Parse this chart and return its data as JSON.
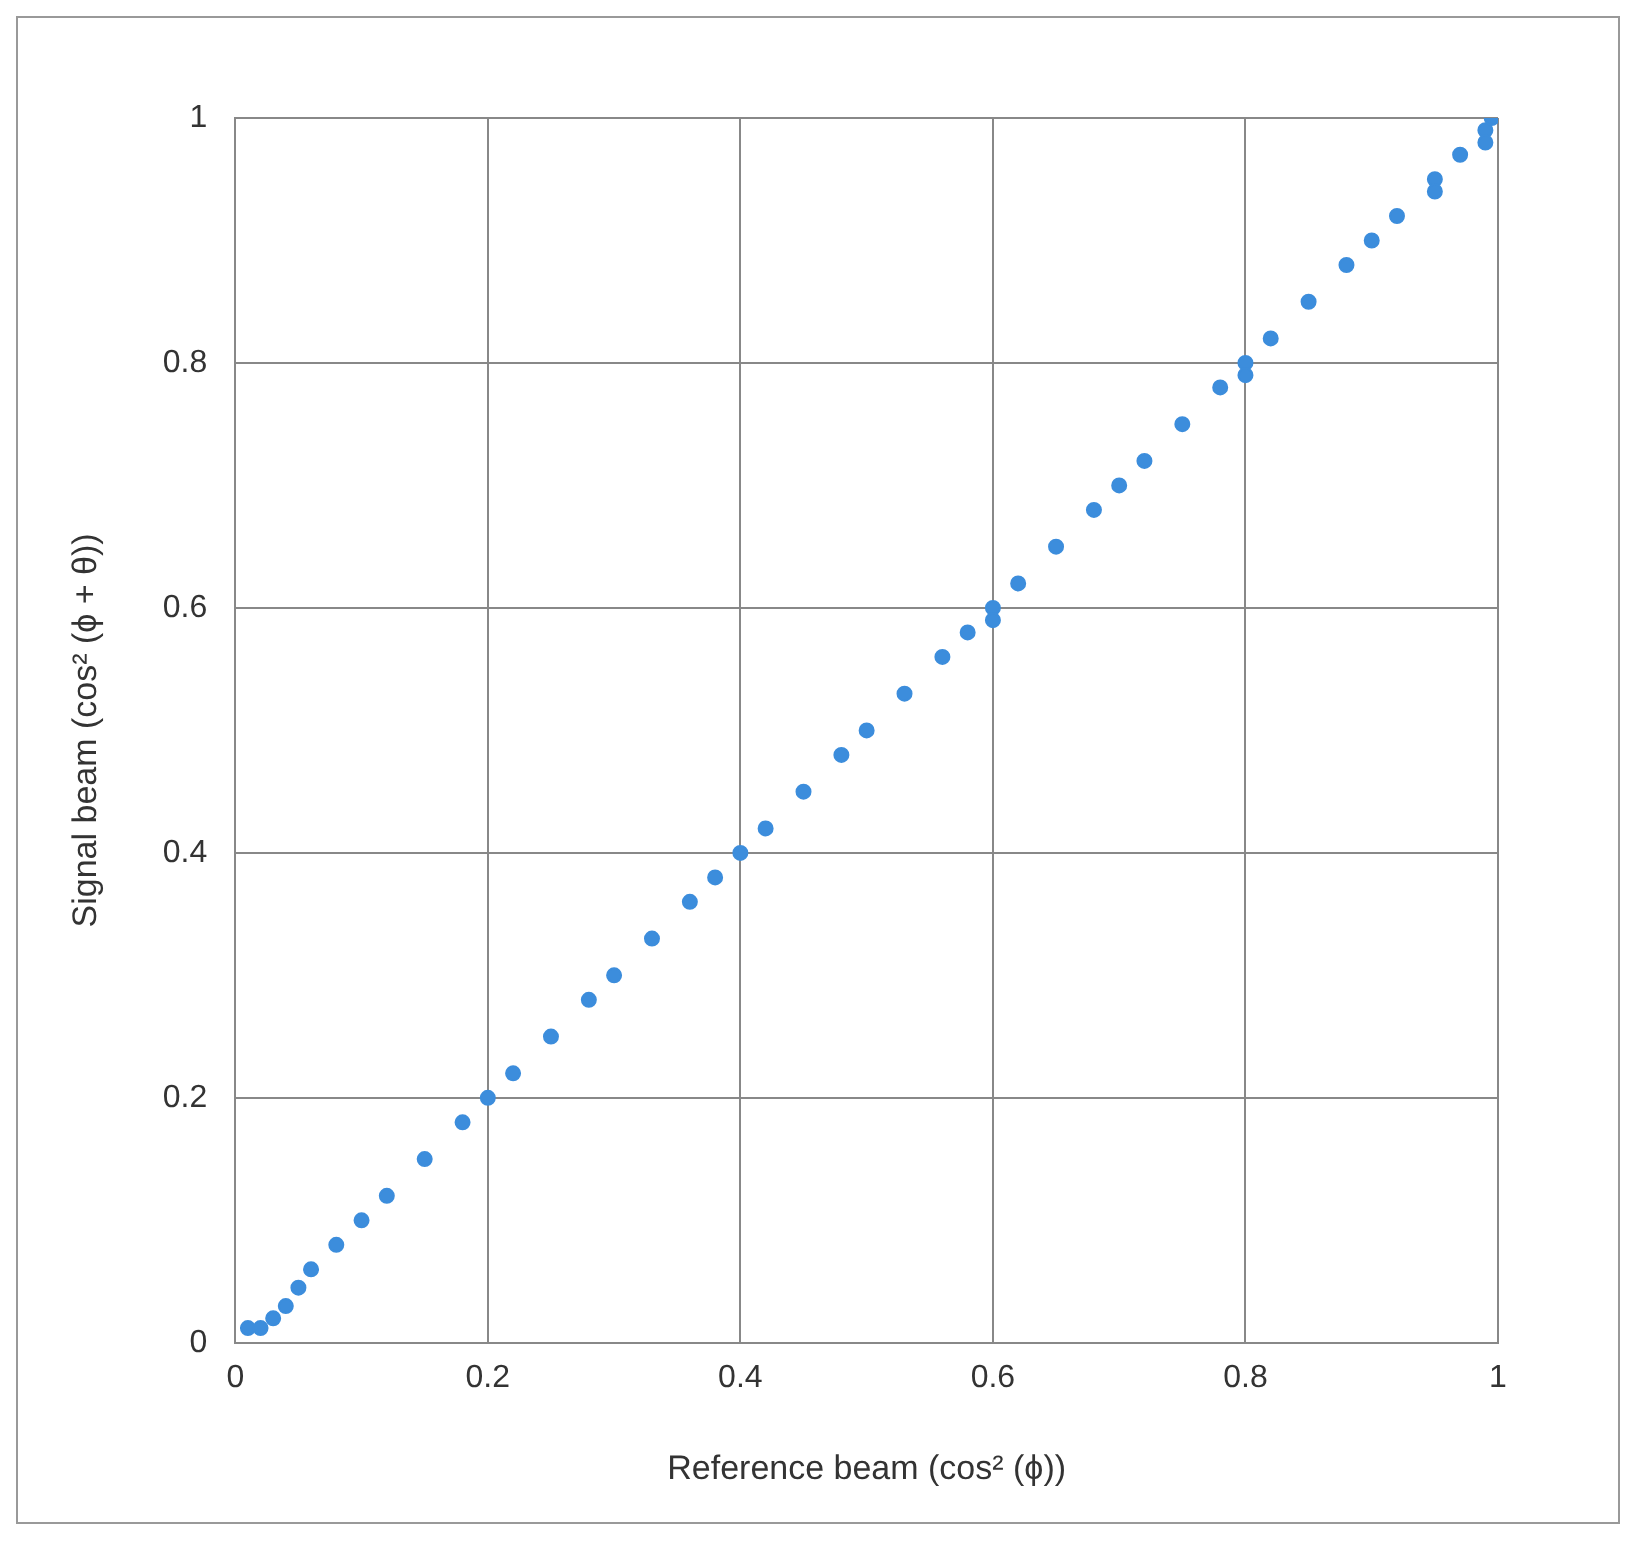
{
  "chart_data": {
    "type": "scatter",
    "xlabel": "Reference beam (cos² (ϕ))",
    "ylabel": "Signal beam (cos² (ϕ + θ))",
    "x": [
      0.01,
      0.02,
      0.03,
      0.04,
      0.05,
      0.06,
      0.08,
      0.1,
      0.12,
      0.15,
      0.18,
      0.2,
      0.22,
      0.25,
      0.28,
      0.3,
      0.33,
      0.36,
      0.38,
      0.4,
      0.42,
      0.45,
      0.48,
      0.5,
      0.53,
      0.56,
      0.58,
      0.6,
      0.6,
      0.62,
      0.65,
      0.68,
      0.7,
      0.72,
      0.75,
      0.78,
      0.8,
      0.8,
      0.82,
      0.85,
      0.88,
      0.9,
      0.92,
      0.95,
      0.95,
      0.97,
      0.99,
      0.99,
      0.995
    ],
    "series": [
      {
        "color": "#3c8ddc",
        "values": [
          0.012,
          0.012,
          0.02,
          0.03,
          0.045,
          0.06,
          0.08,
          0.1,
          0.12,
          0.15,
          0.18,
          0.2,
          0.22,
          0.25,
          0.28,
          0.3,
          0.33,
          0.36,
          0.38,
          0.4,
          0.42,
          0.45,
          0.48,
          0.5,
          0.53,
          0.56,
          0.58,
          0.6,
          0.59,
          0.62,
          0.65,
          0.68,
          0.7,
          0.72,
          0.75,
          0.78,
          0.8,
          0.79,
          0.82,
          0.85,
          0.88,
          0.9,
          0.92,
          0.95,
          0.94,
          0.97,
          0.99,
          0.98,
          1.0
        ]
      }
    ],
    "xlim": [
      0,
      1
    ],
    "xticks": [
      0,
      0.2,
      0.4,
      0.6,
      0.8,
      1
    ],
    "ylim": [
      0,
      1
    ],
    "yticks": [
      0,
      0.2,
      0.4,
      0.6,
      0.8,
      1
    ],
    "grid": true,
    "legend": false,
    "marker": "circle"
  }
}
